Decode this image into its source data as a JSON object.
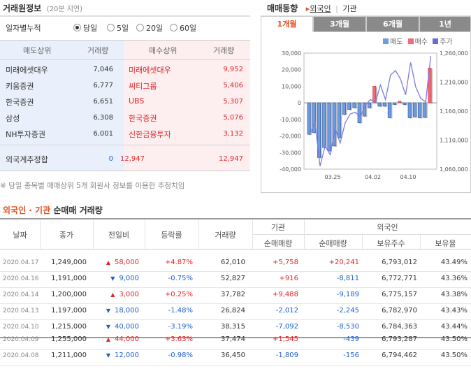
{
  "header": {
    "title": "거래원정보",
    "delay": "(20분 지연)"
  },
  "period": {
    "label": "일자별누적",
    "options": [
      {
        "label": "당일",
        "selected": true
      },
      {
        "label": "5일",
        "selected": false
      },
      {
        "label": "20일",
        "selected": false
      },
      {
        "label": "60일",
        "selected": false
      }
    ]
  },
  "brokers": {
    "sell_header": "매도상위",
    "vol_header": "거래량",
    "buy_header": "매수상위",
    "vol_header2": "거래량",
    "rows": [
      {
        "sell": "미래에셋대우",
        "sell_vol": "7,046",
        "buy": "미래에셋대우",
        "buy_vol": "9,952"
      },
      {
        "sell": "키움증권",
        "sell_vol": "6,777",
        "buy": "씨티그룹",
        "buy_vol": "5,406"
      },
      {
        "sell": "한국증권",
        "sell_vol": "6,651",
        "buy": "UBS",
        "buy_vol": "5,307"
      },
      {
        "sell": "삼성",
        "sell_vol": "6,308",
        "buy": "한국증권",
        "buy_vol": "5,076"
      },
      {
        "sell": "NH투자증권",
        "sell_vol": "6,001",
        "buy": "신한금융투자",
        "buy_vol": "3,132"
      }
    ],
    "foreign_label": "외국계추정합",
    "foreign_sell": "0",
    "foreign_buy_mid": "12,947",
    "foreign_buy": "12,947"
  },
  "note": "※ 당일 종목별 매매상위 5개 회원사 정보를 이용한 추정치임",
  "trend": {
    "title": "매매동향",
    "tabs_top": [
      {
        "label": "외국인",
        "selected": true
      },
      {
        "label": "기관",
        "selected": false
      }
    ],
    "separator": "|",
    "periods": [
      {
        "label": "1개월",
        "selected": true
      },
      {
        "label": "3개월",
        "selected": false
      },
      {
        "label": "6개월",
        "selected": false
      },
      {
        "label": "1년",
        "selected": false
      }
    ],
    "legend": [
      {
        "label": "매도",
        "color": "#6f9be0"
      },
      {
        "label": "매수",
        "color": "#f06b78"
      },
      {
        "label": "주가",
        "color": "#6b6bd6"
      }
    ]
  },
  "chart_data": {
    "type": "bar",
    "y_left": {
      "min": -40000,
      "max": 30000,
      "ticks": [
        "30,000",
        "20,000",
        "10,000",
        "0",
        "-10,000",
        "-20,000",
        "-30,000",
        "-40,000"
      ]
    },
    "y_right": {
      "min": 1060000,
      "max": 1260000,
      "ticks": [
        "1,260,000",
        "1,210,000",
        "1,160,000",
        "1,110,000",
        "1,060,000"
      ]
    },
    "x_ticks": [
      "03.25",
      "04.02",
      "04.10"
    ],
    "net": [
      -19000,
      -18000,
      -33000,
      -27000,
      -29000,
      -26000,
      -21000,
      -7000,
      -4000,
      -3000,
      -12000,
      -8000,
      -3000,
      10000,
      -2000,
      -2000,
      -9000,
      -1000,
      1000,
      -1000,
      -9000,
      -8500,
      -9000,
      -8800,
      21000
    ],
    "price": [
      1120000,
      1140000,
      1065000,
      1100000,
      1085000,
      1130000,
      1105000,
      1140000,
      1155000,
      1158000,
      1150000,
      1170000,
      1180000,
      1175000,
      1205000,
      1180000,
      1222000,
      1230000,
      1215000,
      1188000,
      1244000,
      1202000,
      1182000,
      1176000,
      1255000
    ]
  },
  "net_trading": {
    "title_a": "외국인",
    "dot": " · ",
    "title_b": "기관",
    "title_c": " 순매매 거래량",
    "headers": {
      "date": "날짜",
      "close": "종가",
      "change": "전일비",
      "rate": "등락률",
      "volume": "거래량",
      "inst": "기관",
      "inst_net": "순매매량",
      "foreign": "외국인",
      "foreign_net": "순매매량",
      "holdings": "보유주수",
      "ratio": "보유율"
    },
    "rows": [
      {
        "date": "2020.04.17",
        "close": "1,249,000",
        "dir": "up",
        "change": "58,000",
        "rate": "+4.87%",
        "volume": "62,010",
        "inst": "+5,758",
        "foreign": "+20,241",
        "hold": "6,793,012",
        "ratio": "43.49%"
      },
      {
        "date": "2020.04.16",
        "close": "1,191,000",
        "dir": "down",
        "change": "9,000",
        "rate": "-0.75%",
        "volume": "52,827",
        "inst": "+916",
        "foreign": "-8,811",
        "hold": "6,772,771",
        "ratio": "43.36%"
      },
      {
        "date": "2020.04.14",
        "close": "1,200,000",
        "dir": "up",
        "change": "3,000",
        "rate": "+0.25%",
        "volume": "37,782",
        "inst": "+9,488",
        "foreign": "-9,189",
        "hold": "6,775,157",
        "ratio": "43.38%"
      },
      {
        "date": "2020.04.13",
        "close": "1,197,000",
        "dir": "down",
        "change": "18,000",
        "rate": "-1.48%",
        "volume": "26,824",
        "inst": "-2,012",
        "foreign": "-2,245",
        "hold": "6,782,970",
        "ratio": "43.43%"
      },
      {
        "date": "2020.04.10",
        "close": "1,215,000",
        "dir": "down",
        "change": "40,000",
        "rate": "-3.19%",
        "volume": "38,315",
        "inst": "-7,092",
        "foreign": "-8,530",
        "hold": "6,784,363",
        "ratio": "43.44%"
      },
      {
        "date": "2020.04.09",
        "close": "1,255,000",
        "dir": "up",
        "change": "44,000",
        "rate": "+3.63%",
        "volume": "37,474",
        "inst": "+1,545",
        "foreign": "-439",
        "hold": "6,793,287",
        "ratio": "43.50%"
      },
      {
        "date": "2020.04.08",
        "close": "1,211,000",
        "dir": "down",
        "change": "12,000",
        "rate": "-0.98%",
        "volume": "36,450",
        "inst": "-1,809",
        "foreign": "-156",
        "hold": "6,794,462",
        "ratio": "43.50%"
      }
    ]
  }
}
